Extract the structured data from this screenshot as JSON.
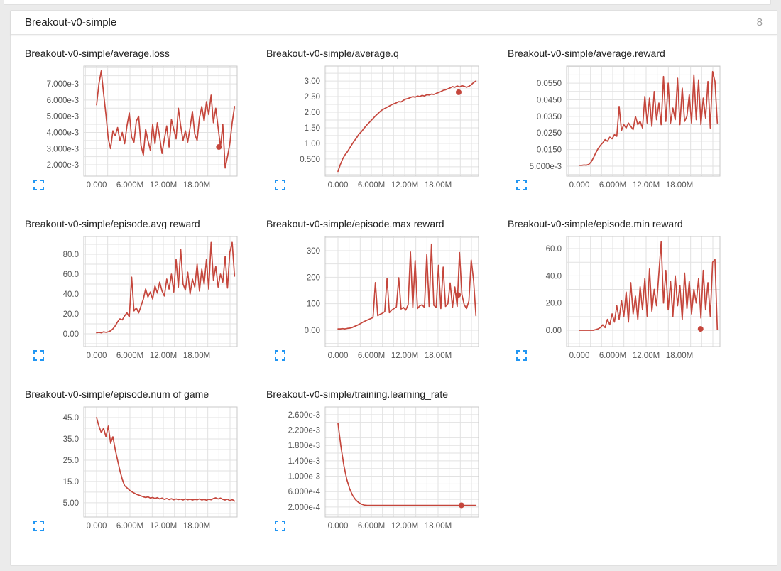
{
  "header": {
    "title": "Breakout-v0-simple",
    "chart_count": "8"
  },
  "colors": {
    "line": "#c5463c",
    "dot": "#c5463c",
    "grid": "#e2e2e2",
    "plot_border": "#c9c9c9",
    "tick_text": "#545454",
    "expand_icon": "#2196f3",
    "card_background": "#ffffff",
    "page_background": "#ebebeb"
  },
  "icons": {
    "expand": "fullscreen-corners"
  },
  "x_axis": {
    "tick_labels": [
      "0.000",
      "6.000M",
      "12.00M",
      "18.00M"
    ],
    "tick_values_millions": [
      0,
      6,
      12,
      18
    ],
    "data_end_millions": 24.8
  },
  "chart_data": [
    {
      "type": "line",
      "title": "Breakout-v0-simple/average.loss",
      "ylim": [
        0.0013,
        0.0081
      ],
      "yticks": [
        {
          "label": "2.000e-3",
          "value": 0.002
        },
        {
          "label": "3.000e-3",
          "value": 0.003
        },
        {
          "label": "4.000e-3",
          "value": 0.004
        },
        {
          "label": "5.000e-3",
          "value": 0.005
        },
        {
          "label": "6.000e-3",
          "value": 0.006
        },
        {
          "label": "7.000e-3",
          "value": 0.007
        }
      ],
      "x_end": 24.8,
      "y": [
        0.0057,
        0.007,
        0.0078,
        0.0064,
        0.0051,
        0.0036,
        0.003,
        0.0041,
        0.0038,
        0.0043,
        0.0035,
        0.004,
        0.0033,
        0.0044,
        0.0052,
        0.0037,
        0.0034,
        0.0047,
        0.005,
        0.0032,
        0.0026,
        0.0042,
        0.0035,
        0.0029,
        0.0045,
        0.0033,
        0.0046,
        0.0037,
        0.0027,
        0.0036,
        0.0044,
        0.0031,
        0.0048,
        0.0042,
        0.0036,
        0.0055,
        0.0044,
        0.0035,
        0.0041,
        0.0034,
        0.0043,
        0.0053,
        0.0039,
        0.0035,
        0.0049,
        0.0056,
        0.0047,
        0.0059,
        0.0051,
        0.0063,
        0.0046,
        0.0055,
        0.0043,
        0.0031,
        0.0045,
        0.0018,
        0.0025,
        0.0033,
        0.0046,
        0.0056
      ],
      "dot": {
        "x": 22.0,
        "y": 0.0031
      }
    },
    {
      "type": "line",
      "title": "Breakout-v0-simple/average.q",
      "ylim": [
        -0.05,
        3.48
      ],
      "yticks": [
        {
          "label": "0.500",
          "value": 0.5
        },
        {
          "label": "1.00",
          "value": 1.0
        },
        {
          "label": "1.50",
          "value": 1.5
        },
        {
          "label": "2.00",
          "value": 2.0
        },
        {
          "label": "2.50",
          "value": 2.5
        },
        {
          "label": "3.00",
          "value": 3.0
        }
      ],
      "x_end": 24.8,
      "y": [
        0.1,
        0.32,
        0.5,
        0.63,
        0.73,
        0.85,
        0.97,
        1.08,
        1.18,
        1.3,
        1.37,
        1.47,
        1.56,
        1.64,
        1.72,
        1.8,
        1.88,
        1.95,
        2.02,
        2.08,
        2.12,
        2.16,
        2.2,
        2.24,
        2.27,
        2.3,
        2.34,
        2.33,
        2.38,
        2.42,
        2.44,
        2.47,
        2.5,
        2.48,
        2.52,
        2.5,
        2.54,
        2.52,
        2.56,
        2.55,
        2.58,
        2.57,
        2.6,
        2.63,
        2.66,
        2.7,
        2.72,
        2.75,
        2.78,
        2.82,
        2.8,
        2.84,
        2.81,
        2.85,
        2.83,
        2.8,
        2.83,
        2.88,
        2.95,
        3.0
      ],
      "dot": {
        "x": 21.7,
        "y": 2.64
      }
    },
    {
      "type": "line",
      "title": "Breakout-v0-simple/average.reward",
      "ylim": [
        -0.001,
        0.0653
      ],
      "yticks": [
        {
          "label": "5.000e-3",
          "value": 0.005
        },
        {
          "label": "0.0150",
          "value": 0.015
        },
        {
          "label": "0.0250",
          "value": 0.025
        },
        {
          "label": "0.0350",
          "value": 0.035
        },
        {
          "label": "0.0450",
          "value": 0.045
        },
        {
          "label": "0.0550",
          "value": 0.055
        }
      ],
      "x_end": 24.8,
      "y": [
        0.0055,
        0.0055,
        0.0057,
        0.0056,
        0.006,
        0.0075,
        0.01,
        0.013,
        0.0155,
        0.0175,
        0.019,
        0.021,
        0.02,
        0.0225,
        0.0215,
        0.024,
        0.023,
        0.041,
        0.0265,
        0.03,
        0.028,
        0.031,
        0.029,
        0.027,
        0.035,
        0.03,
        0.032,
        0.028,
        0.047,
        0.031,
        0.046,
        0.029,
        0.05,
        0.033,
        0.043,
        0.03,
        0.059,
        0.032,
        0.055,
        0.031,
        0.04,
        0.033,
        0.058,
        0.03,
        0.052,
        0.032,
        0.035,
        0.048,
        0.031,
        0.06,
        0.033,
        0.057,
        0.03,
        0.046,
        0.034,
        0.056,
        0.028,
        0.062,
        0.056,
        0.031
      ],
      "dot": null
    },
    {
      "type": "line",
      "title": "Breakout-v0-simple/episode.avg reward",
      "ylim": [
        -12.9,
        97.9
      ],
      "yticks": [
        {
          "label": "0.00",
          "value": 0
        },
        {
          "label": "20.0",
          "value": 20
        },
        {
          "label": "40.0",
          "value": 40
        },
        {
          "label": "60.0",
          "value": 60
        },
        {
          "label": "80.0",
          "value": 80
        }
      ],
      "x_end": 24.8,
      "y": [
        1,
        1.5,
        1,
        2,
        1.5,
        2,
        3,
        5,
        8,
        12,
        15,
        14,
        18,
        21,
        17,
        57,
        23,
        26,
        21,
        28,
        35,
        45,
        37,
        42,
        35,
        48,
        41,
        52,
        43,
        38,
        55,
        45,
        60,
        42,
        75,
        47,
        85,
        50,
        44,
        62,
        40,
        55,
        47,
        70,
        43,
        65,
        50,
        75,
        45,
        92,
        54,
        68,
        47,
        60,
        52,
        78,
        46,
        82,
        92,
        58
      ],
      "dot": null
    },
    {
      "type": "line",
      "title": "Breakout-v0-simple/episode.max reward",
      "ylim": [
        -61.7,
        353.6
      ],
      "yticks": [
        {
          "label": "0.00",
          "value": 0
        },
        {
          "label": "100",
          "value": 100
        },
        {
          "label": "200",
          "value": 200
        },
        {
          "label": "300",
          "value": 300
        }
      ],
      "x_end": 24.8,
      "y": [
        5,
        5,
        6,
        5,
        7,
        8,
        10,
        14,
        18,
        22,
        27,
        32,
        36,
        40,
        44,
        48,
        180,
        55,
        60,
        64,
        70,
        195,
        66,
        76,
        82,
        88,
        198,
        80,
        86,
        76,
        96,
        295,
        86,
        263,
        82,
        92,
        96,
        86,
        285,
        90,
        325,
        94,
        86,
        245,
        82,
        238,
        90,
        100,
        178,
        86,
        163,
        90,
        293,
        135,
        96,
        82,
        110,
        265,
        188,
        55
      ],
      "dot": {
        "x": 21.6,
        "y": 133
      }
    },
    {
      "type": "line",
      "title": "Breakout-v0-simple/episode.min reward",
      "ylim": [
        -12.0,
        68.9
      ],
      "yticks": [
        {
          "label": "0.00",
          "value": 0
        },
        {
          "label": "20.0",
          "value": 20
        },
        {
          "label": "40.0",
          "value": 40
        },
        {
          "label": "60.0",
          "value": 60
        }
      ],
      "x_end": 24.8,
      "y": [
        0,
        0,
        0,
        0,
        0,
        0,
        0,
        0.5,
        1,
        2,
        4,
        2,
        8,
        4,
        12,
        6,
        18,
        8,
        22,
        10,
        28,
        6,
        35,
        12,
        25,
        8,
        32,
        15,
        38,
        10,
        45,
        14,
        30,
        18,
        42,
        65,
        20,
        44,
        15,
        36,
        10,
        40,
        18,
        33,
        8,
        42,
        16,
        36,
        12,
        30,
        20,
        38,
        9,
        44,
        15,
        35,
        10,
        50,
        52,
        0.5
      ],
      "dot": {
        "x": 21.8,
        "y": 1
      }
    },
    {
      "type": "line",
      "title": "Breakout-v0-simple/episode.num of game",
      "ylim": [
        -1.7,
        50.0
      ],
      "yticks": [
        {
          "label": "5.00",
          "value": 5
        },
        {
          "label": "15.0",
          "value": 15
        },
        {
          "label": "25.0",
          "value": 25
        },
        {
          "label": "35.0",
          "value": 35
        },
        {
          "label": "45.0",
          "value": 45
        }
      ],
      "x_end": 24.8,
      "y": [
        45,
        41,
        38,
        40,
        36,
        41,
        33,
        36,
        30,
        25,
        20,
        16,
        13,
        12,
        11,
        10.2,
        9.6,
        9.0,
        8.6,
        8.2,
        7.8,
        7.5,
        7.8,
        7.2,
        7.5,
        7.0,
        7.4,
        6.8,
        7.2,
        6.6,
        7.0,
        6.5,
        6.9,
        6.4,
        6.8,
        6.5,
        6.7,
        6.3,
        6.8,
        6.4,
        6.7,
        6.3,
        6.6,
        6.4,
        6.8,
        6.3,
        6.6,
        6.2,
        6.7,
        6.4,
        7.0,
        7.3,
        6.8,
        7.2,
        6.6,
        6.3,
        6.7,
        6.0,
        6.5,
        5.8
      ],
      "dot": null
    },
    {
      "type": "line",
      "title": "Breakout-v0-simple/training.learning_rate",
      "ylim": [
        -6e-05,
        0.0028
      ],
      "yticks": [
        {
          "label": "2.000e-4",
          "value": 0.0002
        },
        {
          "label": "6.000e-4",
          "value": 0.0006
        },
        {
          "label": "1.000e-3",
          "value": 0.001
        },
        {
          "label": "1.400e-3",
          "value": 0.0014
        },
        {
          "label": "1.800e-3",
          "value": 0.0018
        },
        {
          "label": "2.200e-3",
          "value": 0.0022
        },
        {
          "label": "2.600e-3",
          "value": 0.0026
        }
      ],
      "x_end": 24.8,
      "y": [
        0.00238,
        0.00178,
        0.00128,
        0.00092,
        0.00067,
        0.0005,
        0.00039,
        0.00032,
        0.000275,
        0.00025,
        0.000243,
        0.000243,
        0.000243,
        0.000243,
        0.000243,
        0.000243,
        0.000243,
        0.000243,
        0.000243,
        0.000243,
        0.000243,
        0.000243,
        0.000243,
        0.000243,
        0.000243,
        0.000243,
        0.000243,
        0.000243,
        0.000243,
        0.000243,
        0.000243,
        0.000243,
        0.000243,
        0.000243,
        0.000243,
        0.000243,
        0.000243,
        0.000243,
        0.000243,
        0.000243,
        0.000243,
        0.000243,
        0.000243,
        0.000243,
        0.000243,
        0.000243,
        0.000243,
        0.000243
      ],
      "dot": {
        "x": 22.2,
        "y": 0.000245
      }
    }
  ]
}
